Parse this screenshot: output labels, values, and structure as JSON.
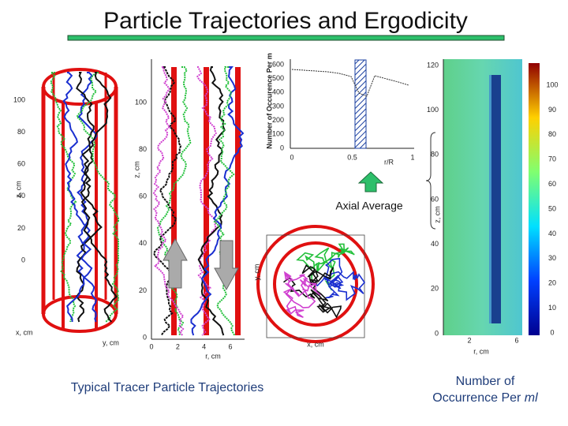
{
  "title": "Particle Trajectories and Ergodicity",
  "cylinder_plot": {
    "y_label": "z, cm",
    "yticks": [
      "100",
      "80",
      "60",
      "40",
      "20",
      "0"
    ],
    "x_label": "x, cm",
    "y2_label": "y, cm"
  },
  "trajectory_plot": {
    "y_label": "z, cm",
    "yticks": [
      "100",
      "80",
      "60",
      "40",
      "20",
      "0"
    ],
    "x_label": "r, cm",
    "xticks": [
      "0",
      "2",
      "4",
      "6"
    ]
  },
  "histogram": {
    "y_label": "Number of Occurence Per m",
    "yticks": [
      "600",
      "500",
      "400",
      "300",
      "200",
      "100",
      "0"
    ],
    "xticks": [
      "0",
      "0.5",
      "1"
    ],
    "x_label": "r/R"
  },
  "arrow_label": "Axial Average",
  "cross_section": {
    "x_label": "x, cm",
    "y_label": "y, cm"
  },
  "heatmap": {
    "y_label": "z, cm",
    "yticks": [
      "120",
      "100",
      "80",
      "60",
      "40",
      "20",
      "0"
    ],
    "x_label": "r, cm",
    "xticks": [
      "2",
      "6"
    ],
    "colorbar_ticks": [
      "100",
      "90",
      "80",
      "70",
      "60",
      "50",
      "40",
      "30",
      "20",
      "10",
      "0"
    ]
  },
  "captions": {
    "left": "Typical Tracer Particle Trajectories",
    "right_line1": "Number of",
    "right_line2": "Occurrence Per",
    "right_unit": "ml"
  }
}
